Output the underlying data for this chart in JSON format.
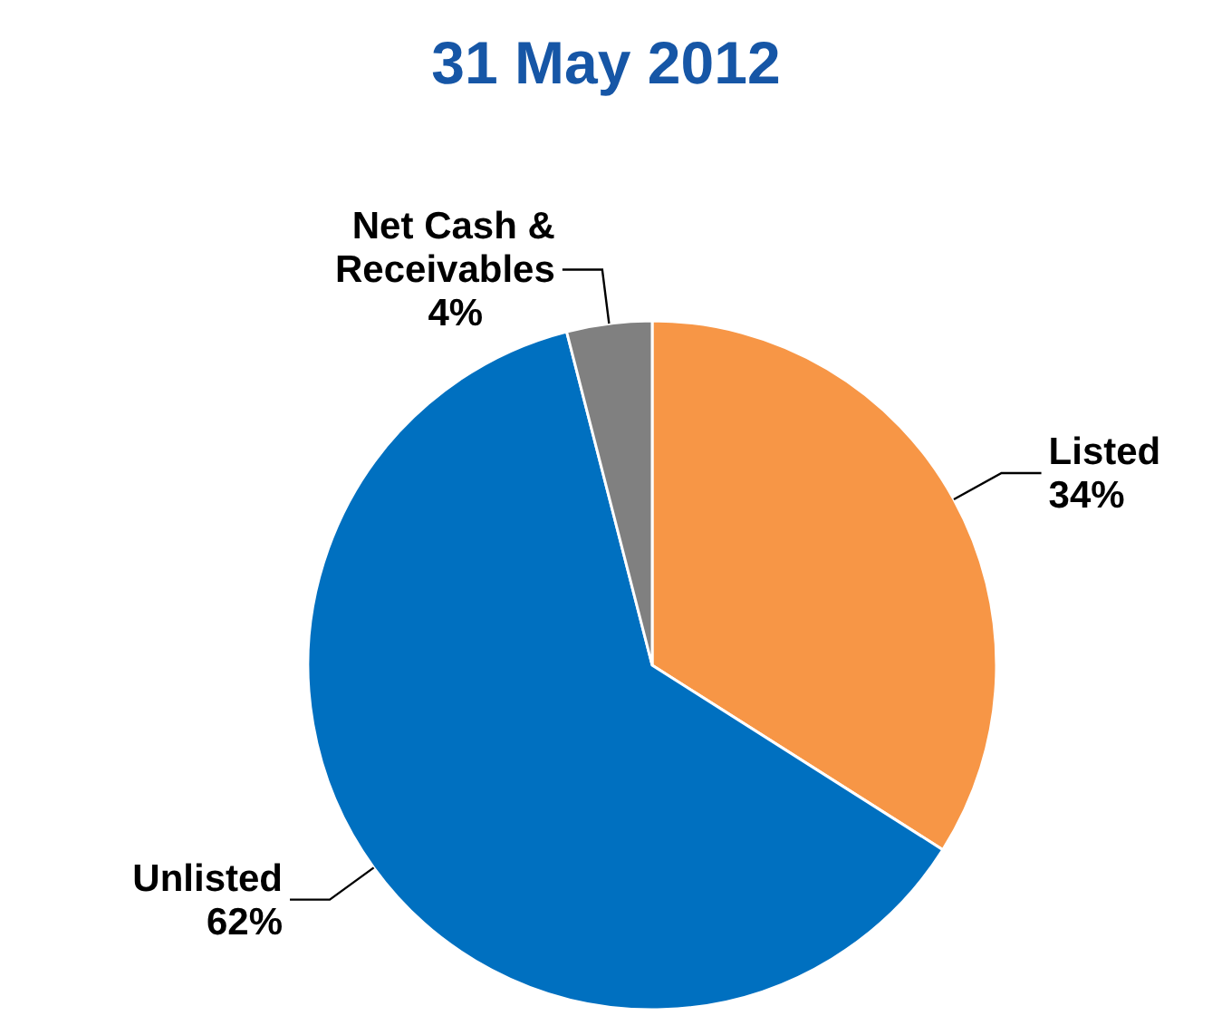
{
  "chart_data": {
    "type": "pie",
    "title": "31 May 2012",
    "categories": [
      "Listed",
      "Unlisted",
      "Net Cash & Receivables"
    ],
    "values": [
      34,
      62,
      4
    ],
    "value_labels": [
      "34%",
      "62%",
      "4%"
    ],
    "colors": [
      "#f79646",
      "#0070c0",
      "#808080"
    ],
    "legend": false
  }
}
